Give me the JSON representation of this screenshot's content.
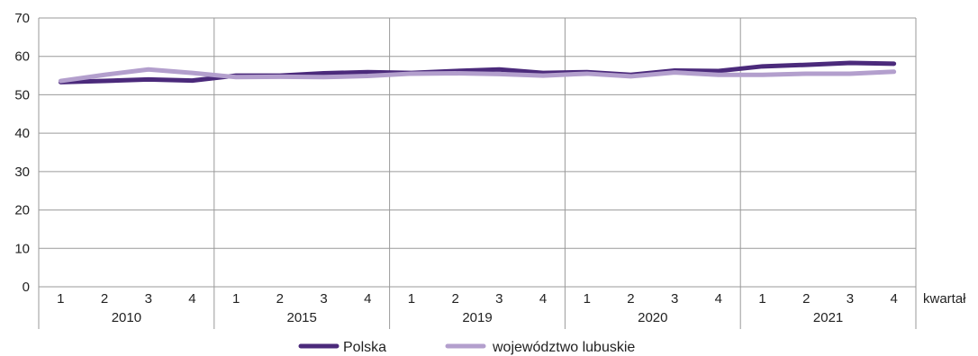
{
  "chart_data": {
    "type": "line",
    "title": "",
    "xlabel": "kwartał",
    "ylabel": "",
    "ylim": [
      0,
      70
    ],
    "yticks": [
      0,
      10,
      20,
      30,
      40,
      50,
      60,
      70
    ],
    "grid": true,
    "legend_position": "bottom",
    "categories": [
      "1",
      "2",
      "3",
      "4",
      "1",
      "2",
      "3",
      "4",
      "1",
      "2",
      "3",
      "4",
      "1",
      "2",
      "3",
      "4",
      "1",
      "2",
      "3",
      "4"
    ],
    "groups": [
      {
        "label": "2010",
        "count": 4
      },
      {
        "label": "2015",
        "count": 4
      },
      {
        "label": "2019",
        "count": 4
      },
      {
        "label": "2020",
        "count": 4
      },
      {
        "label": "2021",
        "count": 4
      }
    ],
    "series": [
      {
        "name": "Polska",
        "color": "#4b2a7b",
        "values": [
          53.3,
          53.6,
          54.0,
          53.7,
          55.0,
          55.0,
          55.6,
          55.9,
          55.7,
          56.2,
          56.6,
          55.7,
          55.9,
          55.2,
          56.3,
          56.2,
          57.4,
          57.8,
          58.3,
          58.1
        ]
      },
      {
        "name": "województwo lubuskie",
        "color": "#b39fcd",
        "values": [
          53.6,
          55.2,
          56.6,
          55.7,
          54.6,
          54.7,
          54.6,
          54.9,
          55.5,
          55.6,
          55.4,
          55.0,
          55.5,
          54.8,
          55.8,
          55.2,
          55.2,
          55.5,
          55.5,
          56.0
        ]
      }
    ]
  }
}
